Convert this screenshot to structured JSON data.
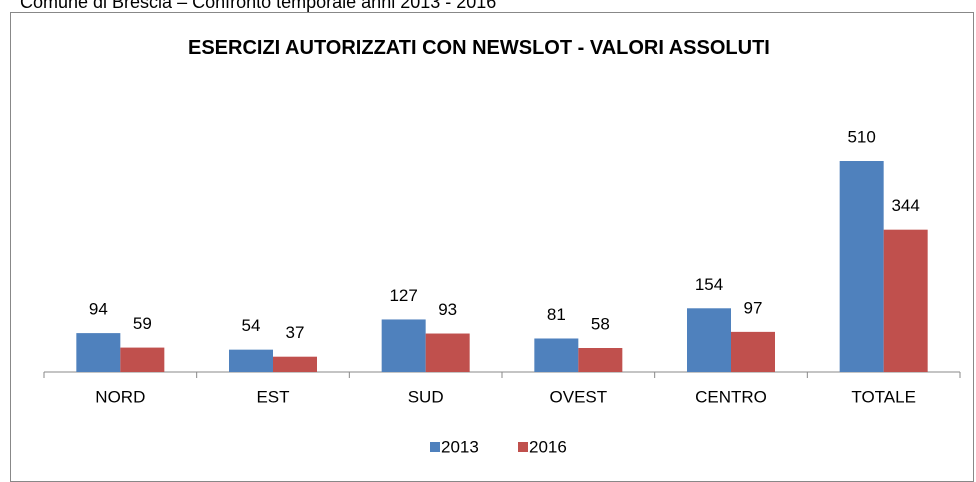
{
  "chart_data": {
    "type": "bar",
    "subtitle": "Comune di Brescia – Confronto temporale anni 2013 - 2016",
    "title": "ESERCIZI AUTORIZZATI CON NEWSLOT - VALORI ASSOLUTI",
    "categories": [
      "NORD",
      "EST",
      "SUD",
      "OVEST",
      "CENTRO",
      "TOTALE"
    ],
    "series": [
      {
        "name": "2013",
        "color": "#4f81bd",
        "values": [
          94,
          54,
          127,
          81,
          154,
          510
        ]
      },
      {
        "name": "2016",
        "color": "#c0504d",
        "values": [
          59,
          37,
          93,
          58,
          97,
          344
        ]
      }
    ],
    "legend": "bottom"
  }
}
